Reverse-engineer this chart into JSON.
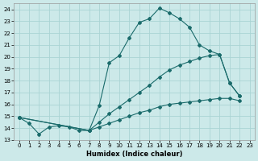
{
  "title": "",
  "xlabel": "Humidex (Indice chaleur)",
  "ylabel": "",
  "bg_color": "#cce9e9",
  "grid_color": "#aad4d4",
  "line_color": "#1a6b6b",
  "xlim": [
    -0.5,
    23.5
  ],
  "ylim": [
    13,
    24.5
  ],
  "yticks": [
    13,
    14,
    15,
    16,
    17,
    18,
    19,
    20,
    21,
    22,
    23,
    24
  ],
  "xticks": [
    0,
    1,
    2,
    3,
    4,
    5,
    6,
    7,
    8,
    9,
    10,
    11,
    12,
    13,
    14,
    15,
    16,
    17,
    18,
    19,
    20,
    21,
    22,
    23
  ],
  "series": [
    {
      "x": [
        0,
        1,
        2,
        3,
        4,
        5,
        6,
        7,
        8,
        9,
        10,
        11,
        12,
        13,
        14,
        15,
        16,
        17,
        18,
        19,
        20,
        21,
        22
      ],
      "y": [
        14.9,
        14.4,
        13.5,
        14.1,
        14.2,
        14.1,
        13.8,
        13.8,
        15.9,
        19.5,
        20.1,
        21.6,
        22.9,
        23.2,
        24.1,
        23.7,
        23.2,
        22.5,
        21.0,
        20.5,
        20.2,
        17.8,
        16.7
      ]
    },
    {
      "x": [
        0,
        7,
        8,
        9,
        10,
        11,
        12,
        13,
        14,
        15,
        16,
        17,
        18,
        19,
        20,
        21,
        22
      ],
      "y": [
        14.9,
        13.8,
        14.5,
        15.2,
        15.8,
        16.4,
        17.0,
        17.6,
        18.3,
        18.9,
        19.3,
        19.6,
        19.9,
        20.1,
        20.2,
        17.8,
        16.7
      ]
    },
    {
      "x": [
        0,
        7,
        8,
        9,
        10,
        11,
        12,
        13,
        14,
        15,
        16,
        17,
        18,
        19,
        20,
        21,
        22
      ],
      "y": [
        14.9,
        13.8,
        14.1,
        14.4,
        14.7,
        15.0,
        15.3,
        15.5,
        15.8,
        16.0,
        16.1,
        16.2,
        16.3,
        16.4,
        16.5,
        16.5,
        16.3
      ]
    }
  ]
}
